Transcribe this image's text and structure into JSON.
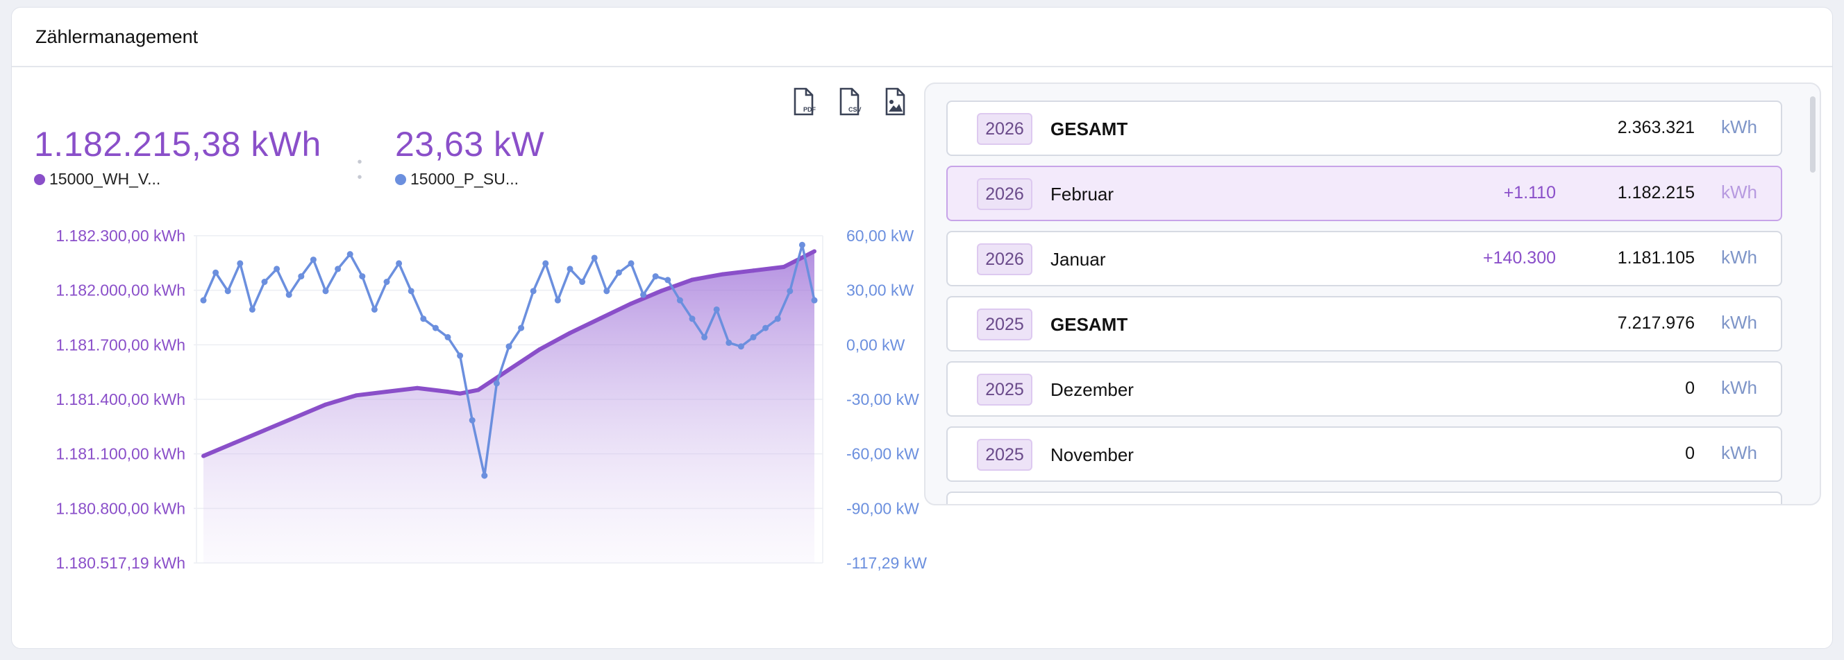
{
  "header": {
    "title": "Zählermanagement"
  },
  "toolbar": {
    "pdf_text": "PDF",
    "csv_text": "CSV"
  },
  "kpis": [
    {
      "value": "1.182.215,38 kWh",
      "series": "15000_WH_V...",
      "color": "#8a4fc9"
    },
    {
      "value": "23,63 kW",
      "series": "15000_P_SU...",
      "color": "#6b8fde"
    }
  ],
  "chart_data": {
    "type": "line",
    "title": "",
    "grid": true,
    "left_axis": {
      "ticks": [
        "1.182.300,00 kWh",
        "1.182.000,00 kWh",
        "1.181.700,00 kWh",
        "1.181.400,00 kWh",
        "1.181.100,00 kWh",
        "1.180.800,00 kWh",
        "1.180.517,19 kWh"
      ],
      "ylim": [
        1180517.19,
        1182300.0
      ]
    },
    "right_axis": {
      "ticks": [
        "60,00 kW",
        "30,00 kW",
        "0,00 kW",
        "-30,00 kW",
        "-60,00 kW",
        "-90,00 kW",
        "-117,29 kW"
      ],
      "ylim": [
        -117.29,
        60.0
      ]
    },
    "series": [
      {
        "name": "15000_WH_V...",
        "axis": "left",
        "area": true,
        "color": "#8a4fc9",
        "x": [
          0,
          0.05,
          0.1,
          0.15,
          0.2,
          0.25,
          0.3,
          0.35,
          0.4,
          0.42,
          0.45,
          0.5,
          0.55,
          0.6,
          0.65,
          0.7,
          0.75,
          0.8,
          0.85,
          0.9,
          0.95,
          1.0
        ],
        "values": [
          1181100,
          1181170,
          1181240,
          1181310,
          1181380,
          1181430,
          1181450,
          1181470,
          1181450,
          1181440,
          1181460,
          1181570,
          1181680,
          1181770,
          1181850,
          1181930,
          1182000,
          1182060,
          1182090,
          1182110,
          1182130,
          1182215
        ]
      },
      {
        "name": "15000_P_SU...",
        "axis": "right",
        "area": false,
        "color": "#6b8fde",
        "x": [
          0,
          0.02,
          0.04,
          0.06,
          0.08,
          0.1,
          0.12,
          0.14,
          0.16,
          0.18,
          0.2,
          0.22,
          0.24,
          0.26,
          0.28,
          0.3,
          0.32,
          0.34,
          0.36,
          0.38,
          0.4,
          0.42,
          0.44,
          0.46,
          0.48,
          0.5,
          0.52,
          0.54,
          0.56,
          0.58,
          0.6,
          0.62,
          0.64,
          0.66,
          0.68,
          0.7,
          0.72,
          0.74,
          0.76,
          0.78,
          0.8,
          0.82,
          0.84,
          0.86,
          0.88,
          0.9,
          0.92,
          0.94,
          0.96,
          0.98,
          1.0
        ],
        "values": [
          25,
          40,
          30,
          45,
          20,
          35,
          42,
          28,
          38,
          47,
          30,
          42,
          50,
          38,
          20,
          35,
          45,
          30,
          15,
          10,
          5,
          -5,
          -40,
          -70,
          -20,
          0,
          10,
          30,
          45,
          25,
          42,
          35,
          48,
          30,
          40,
          45,
          28,
          38,
          36,
          25,
          15,
          5,
          20,
          2,
          0,
          5,
          10,
          15,
          30,
          55,
          25
        ]
      }
    ]
  },
  "list": {
    "rows": [
      {
        "year": "2026",
        "label": "GESAMT",
        "delta": "",
        "value": "2.363.321",
        "unit": "kWh",
        "bold": true,
        "selected": false
      },
      {
        "year": "2026",
        "label": "Februar",
        "delta": "+1.110",
        "value": "1.182.215",
        "unit": "kWh",
        "bold": false,
        "selected": true
      },
      {
        "year": "2026",
        "label": "Januar",
        "delta": "+140.300",
        "value": "1.181.105",
        "unit": "kWh",
        "bold": false,
        "selected": false
      },
      {
        "year": "2025",
        "label": "GESAMT",
        "delta": "",
        "value": "7.217.976",
        "unit": "kWh",
        "bold": true,
        "selected": false
      },
      {
        "year": "2025",
        "label": "Dezember",
        "delta": "",
        "value": "0",
        "unit": "kWh",
        "bold": false,
        "selected": false
      },
      {
        "year": "2025",
        "label": "November",
        "delta": "",
        "value": "0",
        "unit": "kWh",
        "bold": false,
        "selected": false
      }
    ]
  }
}
